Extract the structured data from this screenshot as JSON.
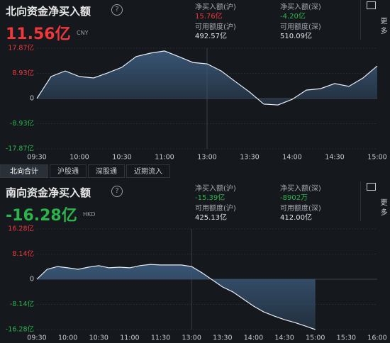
{
  "panels": [
    {
      "title": "北向资金净买入额",
      "value": "11.56亿",
      "currency": "CNY",
      "more": "更多",
      "stats": [
        {
          "label": "净买入额(沪)",
          "value": "15.76亿"
        },
        {
          "label": "净买入额(深)",
          "value": "-4.20亿"
        },
        {
          "label": "可用额度(沪)",
          "value": "492.57亿"
        },
        {
          "label": "可用额度(深)",
          "value": "510.09亿"
        }
      ]
    },
    {
      "title": "南向资金净买入额",
      "value": "-16.28亿",
      "currency": "HKD",
      "more": "更多",
      "stats": [
        {
          "label": "净买入额(沪)",
          "value": "-15.39亿"
        },
        {
          "label": "净买入额(深)",
          "value": "-8902万"
        },
        {
          "label": "可用额度(沪)",
          "value": "425.13亿"
        },
        {
          "label": "可用额度(深)",
          "value": "412.00亿"
        }
      ]
    }
  ],
  "tabs": [
    "北向合计",
    "沪股通",
    "深股通",
    "近期流入"
  ],
  "chart_data": [
    {
      "type": "line",
      "x": [
        "09:30",
        "09:40",
        "09:50",
        "10:00",
        "10:10",
        "10:20",
        "10:30",
        "10:40",
        "10:50",
        "11:00",
        "11:10",
        "11:20",
        "13:00",
        "13:10",
        "13:20",
        "13:30",
        "13:40",
        "13:50",
        "14:00",
        "14:10",
        "14:20",
        "14:30",
        "14:40",
        "14:50",
        "15:00"
      ],
      "series": [
        {
          "color": "#e8eef5",
          "fill": "#3a5878",
          "values": [
            0,
            7.8,
            9.8,
            7.8,
            7.3,
            9.1,
            11.1,
            14.9,
            16.1,
            16.9,
            14.9,
            12.8,
            12.3,
            9.8,
            6.0,
            2.3,
            -2.0,
            -2.3,
            -0.3,
            3.0,
            3.5,
            5.3,
            4.3,
            7.3,
            11.56
          ]
        }
      ],
      "xticks": [
        "09:30",
        "10:00",
        "10:30",
        "11:00",
        "13:00",
        "13:30",
        "14:00",
        "14:30",
        "15:00"
      ],
      "ylim": [
        -17.87,
        17.87
      ],
      "yticks": [
        {
          "value": 17.87,
          "label": "17.87亿"
        },
        {
          "value": 8.93,
          "label": "8.93亿"
        },
        0,
        {
          "value": -8.93,
          "label": "-8.93亿"
        },
        {
          "value": -17.87,
          "label": "-17.87亿"
        }
      ]
    },
    {
      "type": "line",
      "x": [
        "09:30",
        "09:40",
        "09:50",
        "10:00",
        "10:10",
        "10:20",
        "10:30",
        "10:40",
        "10:50",
        "11:00",
        "11:10",
        "11:20",
        "11:30",
        "11:40",
        "11:50",
        "13:00",
        "13:10",
        "13:20",
        "13:30",
        "13:40",
        "13:50",
        "14:00",
        "14:10",
        "14:20",
        "14:30",
        "14:40",
        "14:50",
        "15:00"
      ],
      "series": [
        {
          "color": "#e8eef5",
          "fill": "#3a5878",
          "values": [
            0,
            3.2,
            4.1,
            3.7,
            3.2,
            3.9,
            4.4,
            3.7,
            3.9,
            3.7,
            4.4,
            4.8,
            4.6,
            4.6,
            4.6,
            4.1,
            2.1,
            -0.2,
            -2.5,
            -4.1,
            -6.4,
            -8.7,
            -10.6,
            -11.9,
            -13.1,
            -14.0,
            -15.1,
            -16.28
          ]
        }
      ],
      "xticks": [
        "09:30",
        "10:00",
        "10:30",
        "11:00",
        "11:30",
        "13:00",
        "13:30",
        "14:00",
        "14:30",
        "15:00",
        "15:30",
        "16:00"
      ],
      "ylim": [
        -16.28,
        16.28
      ],
      "yticks": [
        {
          "value": 16.28,
          "label": "16.28亿"
        },
        {
          "value": 8.14,
          "label": "8.14亿"
        },
        0,
        {
          "value": -8.14,
          "label": "-8.14亿"
        },
        {
          "value": -16.28,
          "label": "-16.28亿"
        }
      ]
    }
  ]
}
